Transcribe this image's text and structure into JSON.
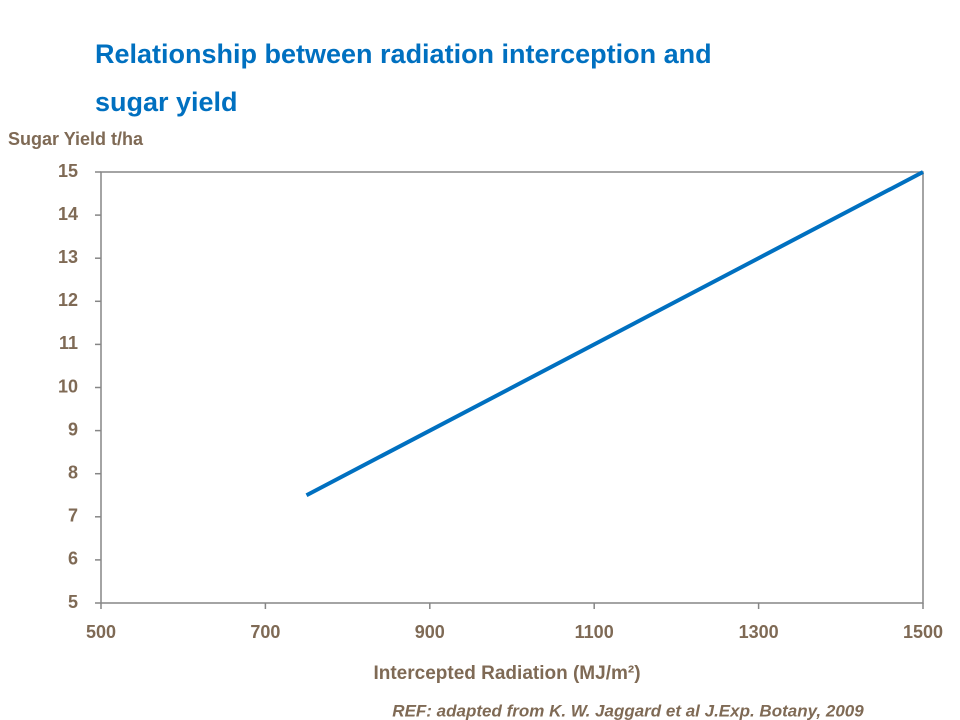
{
  "chart_data": {
    "type": "line",
    "title": "Relationship between radiation interception and sugar yield",
    "ylabel": "Sugar Yield t/ha",
    "xlabel": "Intercepted Radiation (MJ/m²)",
    "note": "REF: adapted from K. W. Jaggard et al J.Exp. Botany, 2009",
    "x": [
      750,
      1500
    ],
    "series": [
      {
        "name": "Sugar yield",
        "color": "#0070c0",
        "values": [
          7.5,
          15
        ]
      }
    ],
    "xlim": [
      500,
      1500
    ],
    "xticks": [
      500,
      700,
      900,
      1100,
      1300,
      1500
    ],
    "ylim": [
      5,
      15
    ],
    "yticks": [
      5,
      6,
      7,
      8,
      9,
      10,
      11,
      12,
      13,
      14,
      15
    ],
    "grid": false
  }
}
